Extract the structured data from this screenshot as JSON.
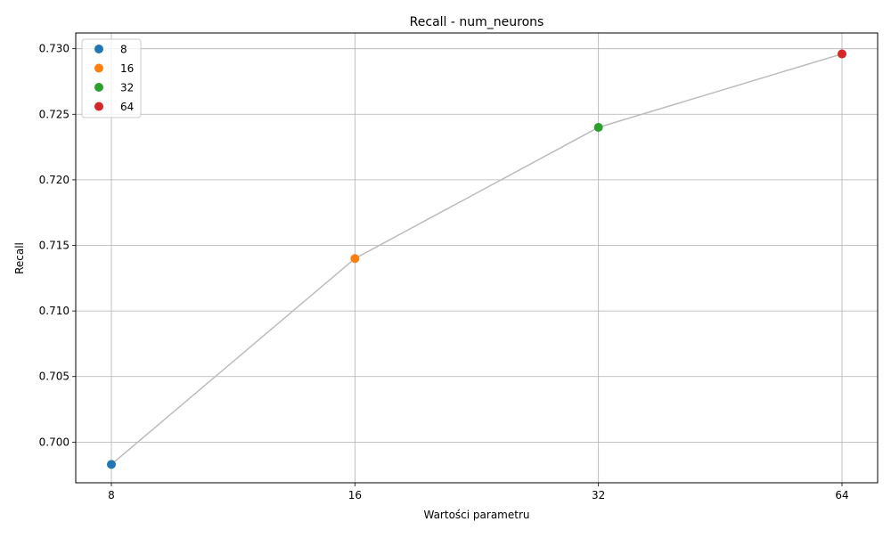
{
  "chart_data": {
    "type": "scatter",
    "title": "Recall - num_neurons",
    "xlabel": "Wartości parametru",
    "ylabel": "Recall",
    "categories": [
      "8",
      "16",
      "32",
      "64"
    ],
    "x_scale": "categorical",
    "ylim": [
      0.6969,
      0.7312
    ],
    "yticks": [
      0.7,
      0.705,
      0.71,
      0.715,
      0.72,
      0.725,
      0.73
    ],
    "ytick_labels": [
      "0.700",
      "0.705",
      "0.710",
      "0.715",
      "0.720",
      "0.725",
      "0.730"
    ],
    "grid": true,
    "connecting_line_color": "#bbbbbb",
    "legend_position": "top-left",
    "series": [
      {
        "name": "8",
        "x": "8",
        "y": 0.6983,
        "color": "#1f77b4"
      },
      {
        "name": "16",
        "x": "16",
        "y": 0.714,
        "color": "#ff7f0e"
      },
      {
        "name": "32",
        "x": "32",
        "y": 0.724,
        "color": "#2ca02c"
      },
      {
        "name": "64",
        "x": "64",
        "y": 0.7296,
        "color": "#d62728"
      }
    ]
  }
}
